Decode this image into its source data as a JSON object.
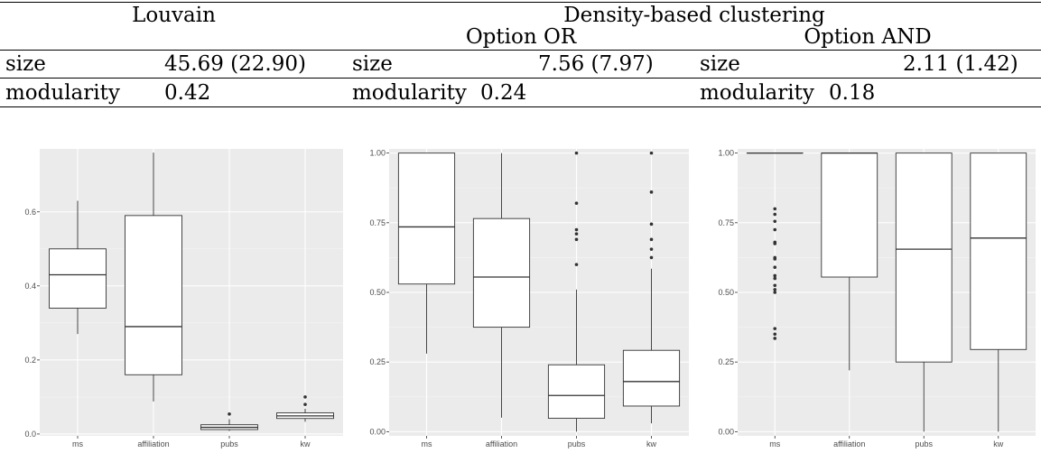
{
  "table": {
    "louvain_header": "Louvain",
    "density_header": "Density-based clustering",
    "option_or_header": "Option OR",
    "option_and_header": "Option AND",
    "louvain": {
      "size_label": "size",
      "size_value": "45.69 (22.90)",
      "modularity_label": "modularity",
      "modularity_value": "0.42"
    },
    "option_or": {
      "size_label": "size",
      "size_value": "7.56 (7.97)",
      "modularity_label": "modularity",
      "modularity_value": "0.24"
    },
    "option_and": {
      "size_label": "size",
      "size_value": "2.11 (1.42)",
      "modularity_label": "modularity",
      "modularity_value": "0.18"
    }
  },
  "chart_data": [
    {
      "type": "boxplot",
      "categories": [
        "ms",
        "affiliation",
        "pubs",
        "kw"
      ],
      "ylim": [
        -0.005,
        0.77
      ],
      "yticks": [
        0.0,
        0.2,
        0.4,
        0.6
      ],
      "ytick_labels": [
        "0.0",
        "0.2",
        "0.4",
        "0.6"
      ],
      "boxes": [
        {
          "min": 0.27,
          "q1": 0.34,
          "median": 0.43,
          "q3": 0.5,
          "max": 0.63,
          "outliers": []
        },
        {
          "min": 0.088,
          "q1": 0.16,
          "median": 0.29,
          "q3": 0.59,
          "max": 0.76,
          "outliers": []
        },
        {
          "min": 0.008,
          "q1": 0.012,
          "median": 0.018,
          "q3": 0.025,
          "max": 0.04,
          "outliers": [
            0.054
          ]
        },
        {
          "min": 0.033,
          "q1": 0.042,
          "median": 0.049,
          "q3": 0.057,
          "max": 0.068,
          "outliers": [
            0.08,
            0.1
          ]
        }
      ],
      "background": "#ebebeb",
      "grid": "white"
    },
    {
      "type": "boxplot",
      "categories": [
        "ms",
        "affiliation",
        "pubs",
        "kw"
      ],
      "ylim": [
        -0.015,
        1.015
      ],
      "yticks": [
        0.0,
        0.25,
        0.5,
        0.75,
        1.0
      ],
      "ytick_labels": [
        "0.00",
        "0.25",
        "0.50",
        "0.75",
        "1.00"
      ],
      "boxes": [
        {
          "min": 0.28,
          "q1": 0.53,
          "median": 0.735,
          "q3": 1.0,
          "max": 1.0,
          "outliers": []
        },
        {
          "min": 0.05,
          "q1": 0.375,
          "median": 0.555,
          "q3": 0.765,
          "max": 1.0,
          "outliers": []
        },
        {
          "min": 0.0,
          "q1": 0.048,
          "median": 0.13,
          "q3": 0.24,
          "max": 0.51,
          "outliers": [
            0.6,
            0.69,
            0.71,
            0.725,
            0.82,
            1.0
          ]
        },
        {
          "min": 0.03,
          "q1": 0.092,
          "median": 0.18,
          "q3": 0.292,
          "max": 0.585,
          "outliers": [
            0.625,
            0.655,
            0.69,
            0.745,
            0.86,
            1.0
          ]
        }
      ],
      "background": "#ebebeb",
      "grid": "white"
    },
    {
      "type": "boxplot",
      "categories": [
        "ms",
        "affiliation",
        "pubs",
        "kw"
      ],
      "ylim": [
        -0.015,
        1.015
      ],
      "yticks": [
        0.0,
        0.25,
        0.5,
        0.75,
        1.0
      ],
      "ytick_labels": [
        "0.00",
        "0.25",
        "0.50",
        "0.75",
        "1.00"
      ],
      "boxes": [
        {
          "min": 1.0,
          "q1": 1.0,
          "median": 1.0,
          "q3": 1.0,
          "max": 1.0,
          "outliers": [
            0.335,
            0.35,
            0.37,
            0.5,
            0.51,
            0.525,
            0.55,
            0.56,
            0.59,
            0.62,
            0.625,
            0.675,
            0.68,
            0.725,
            0.755,
            0.78,
            0.8
          ]
        },
        {
          "min": 0.22,
          "q1": 0.555,
          "median": 1.0,
          "q3": 1.0,
          "max": 1.0,
          "outliers": []
        },
        {
          "min": 0.0,
          "q1": 0.25,
          "median": 0.655,
          "q3": 1.0,
          "max": 1.0,
          "outliers": []
        },
        {
          "min": 0.0,
          "q1": 0.295,
          "median": 0.695,
          "q3": 1.0,
          "max": 1.0,
          "outliers": []
        }
      ],
      "background": "#ebebeb",
      "grid": "white"
    }
  ]
}
